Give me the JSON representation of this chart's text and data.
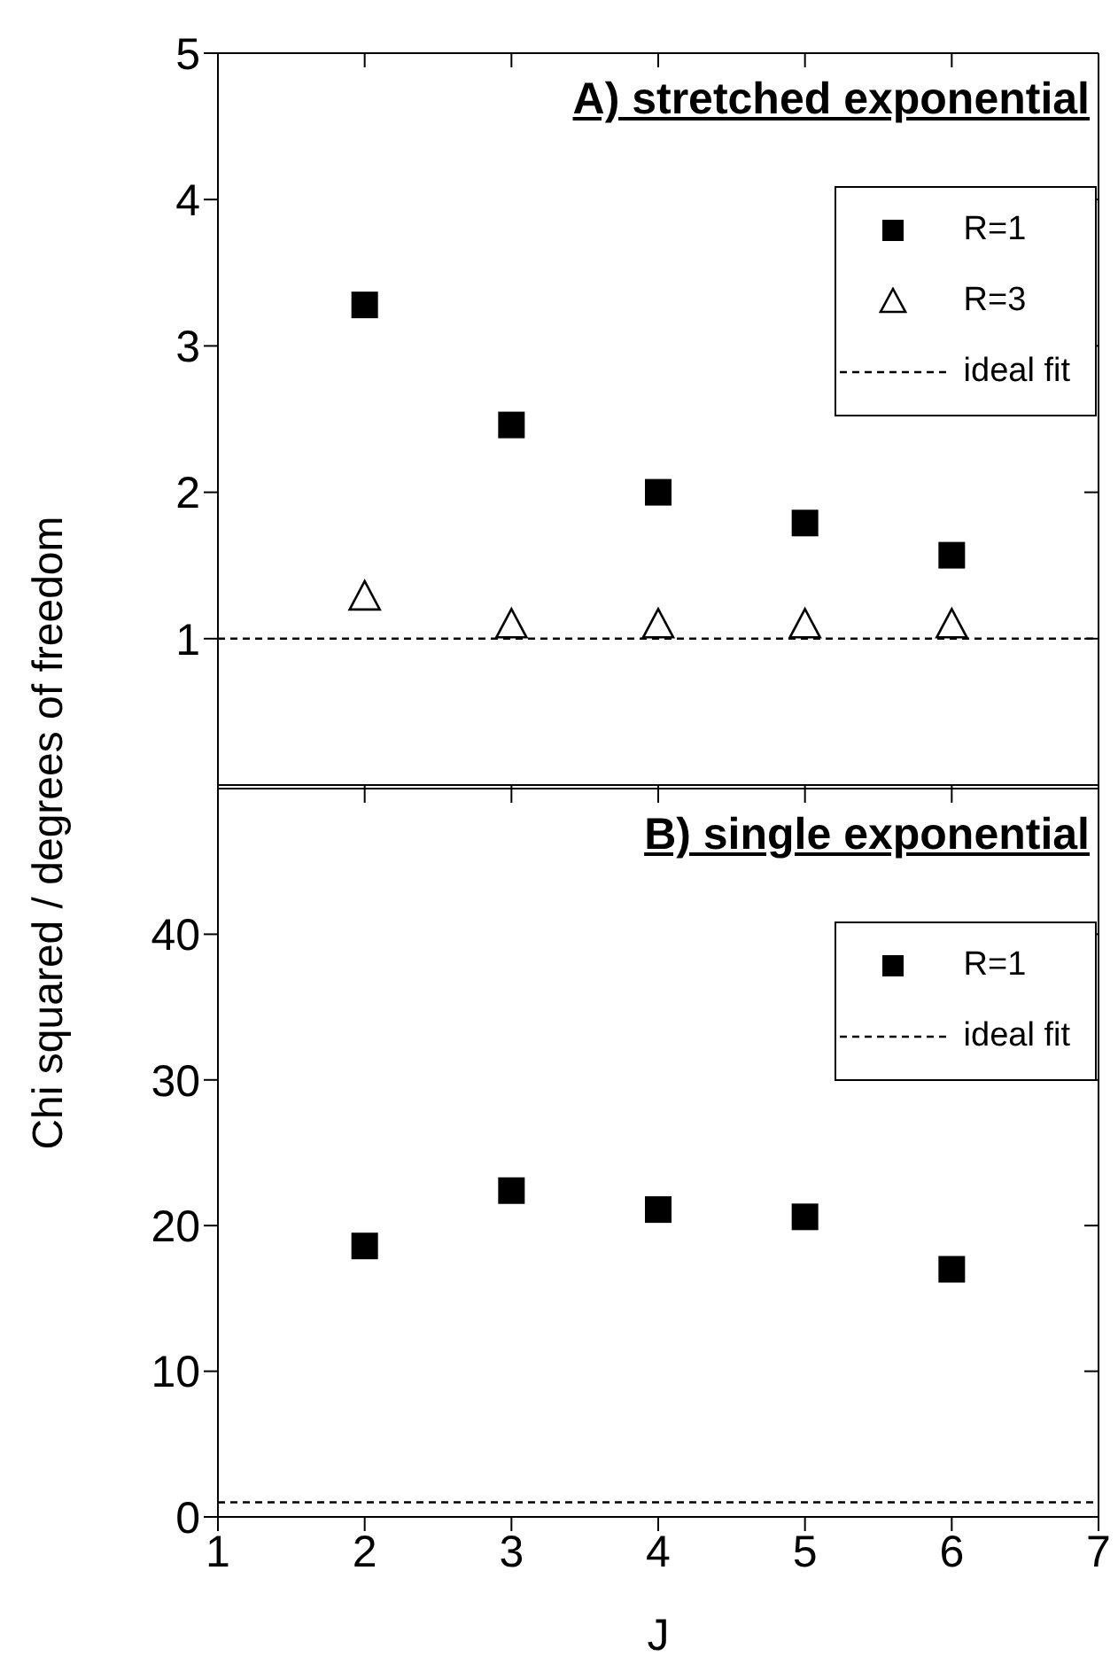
{
  "chart_data": [
    {
      "type": "scatter",
      "title": "A) stretched exponential",
      "ylabel": "Chi squared / degrees of freedom",
      "xlim": [
        1,
        7
      ],
      "xticks": [
        1,
        2,
        3,
        4,
        5,
        6,
        7
      ],
      "ylim": [
        0,
        5
      ],
      "yticks": [
        1,
        2,
        3,
        4,
        5
      ],
      "tick_labels": "y",
      "grid": false,
      "legend": "top right",
      "series": [
        {
          "name": "R=1",
          "color": "#000000",
          "marker": "square",
          "x": [
            2,
            3,
            4,
            5,
            6
          ],
          "values": [
            3.28,
            2.46,
            2.0,
            1.79,
            1.57
          ]
        },
        {
          "name": "R=3",
          "color": "#000000",
          "marker": "triangle",
          "x": [
            2,
            3,
            4,
            5,
            6
          ],
          "values": [
            1.29,
            1.1,
            1.1,
            1.1,
            1.1
          ]
        },
        {
          "name": "ideal fit",
          "type": "line",
          "color": "#000000",
          "line_style": "dashed",
          "x": [
            1,
            7
          ],
          "values": [
            1,
            1
          ]
        }
      ]
    },
    {
      "type": "scatter",
      "title": "B) single exponential",
      "xlabel": "J",
      "xlim": [
        1,
        7
      ],
      "xticks": [
        1,
        2,
        3,
        4,
        5,
        6,
        7
      ],
      "ylim": [
        0,
        50
      ],
      "yticks": [
        0,
        10,
        20,
        30,
        40
      ],
      "grid": false,
      "legend": "top right",
      "series": [
        {
          "name": "R=1",
          "color": "#000000",
          "marker": "square",
          "x": [
            2,
            3,
            4,
            5,
            6
          ],
          "values": [
            18.6,
            22.4,
            21.1,
            20.6,
            17.0
          ]
        },
        {
          "name": "ideal fit",
          "type": "line",
          "color": "#000000",
          "line_style": "dashed",
          "x": [
            1,
            7
          ],
          "values": [
            1,
            1
          ]
        }
      ]
    }
  ]
}
